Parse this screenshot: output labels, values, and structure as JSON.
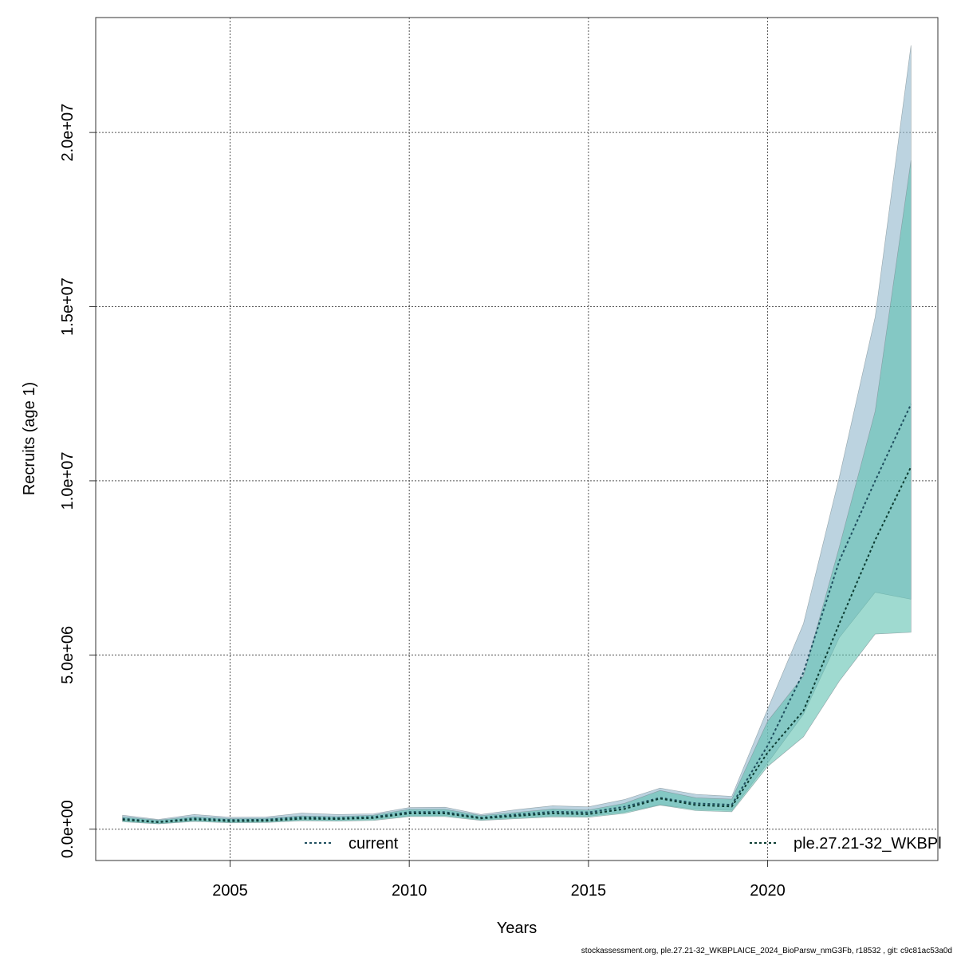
{
  "chart_data": {
    "type": "line",
    "title": "",
    "xlabel": "Years",
    "ylabel": "Recruits (age 1)",
    "xlim": [
      2001.25,
      2024.75
    ],
    "ylim": [
      -900000,
      23300000
    ],
    "x_ticks": [
      2005,
      2010,
      2015,
      2020
    ],
    "x_tick_labels": [
      "2005",
      "2010",
      "2015",
      "2020"
    ],
    "y_ticks": [
      0,
      5000000,
      10000000,
      15000000,
      20000000
    ],
    "y_tick_labels": [
      "0.0e+00",
      "5.0e+06",
      "1.0e+07",
      "1.5e+07",
      "2.0e+07"
    ],
    "grid": true,
    "legend_placement": "bottom",
    "x": [
      2002,
      2003,
      2004,
      2005,
      2006,
      2007,
      2008,
      2009,
      2010,
      2011,
      2012,
      2013,
      2014,
      2015,
      2016,
      2017,
      2018,
      2019,
      2020,
      2021,
      2022,
      2023,
      2024
    ],
    "series": [
      {
        "name": "current",
        "line_color": "#1f4f5f",
        "band_color": "#8fb6cc",
        "estimate": [
          300000,
          210000,
          310000,
          260000,
          270000,
          340000,
          320000,
          350000,
          490000,
          490000,
          330000,
          420000,
          500000,
          480000,
          640000,
          900000,
          740000,
          700000,
          2400000,
          4500000,
          7700000,
          10000000,
          12200000
        ],
        "lower": [
          230000,
          160000,
          240000,
          200000,
          210000,
          260000,
          250000,
          280000,
          380000,
          390000,
          270000,
          330000,
          380000,
          370000,
          490000,
          700000,
          570000,
          540000,
          1900000,
          3300000,
          5500000,
          6800000,
          6600000
        ],
        "upper": [
          400000,
          280000,
          420000,
          340000,
          350000,
          460000,
          420000,
          440000,
          620000,
          630000,
          420000,
          560000,
          670000,
          640000,
          850000,
          1180000,
          1000000,
          940000,
          3450000,
          5900000,
          10100000,
          14700000,
          22500000
        ]
      },
      {
        "name": "ple.27.21-32_WKBPl",
        "line_color": "#0d3d33",
        "band_color": "#5fc1b0",
        "estimate": [
          270000,
          200000,
          280000,
          230000,
          240000,
          300000,
          290000,
          320000,
          450000,
          450000,
          310000,
          380000,
          450000,
          430000,
          580000,
          880000,
          690000,
          650000,
          2200000,
          3400000,
          5900000,
          8300000,
          10400000
        ],
        "lower": [
          210000,
          150000,
          220000,
          180000,
          190000,
          240000,
          230000,
          250000,
          360000,
          360000,
          250000,
          300000,
          350000,
          340000,
          450000,
          690000,
          530000,
          500000,
          1800000,
          2650000,
          4250000,
          5600000,
          5650000
        ],
        "upper": [
          350000,
          260000,
          360000,
          300000,
          310000,
          380000,
          360000,
          400000,
          570000,
          570000,
          390000,
          480000,
          580000,
          550000,
          740000,
          1110000,
          900000,
          860000,
          3100000,
          4400000,
          8100000,
          12000000,
          19200000
        ]
      }
    ],
    "legend": [
      {
        "label": "current"
      },
      {
        "label": "ple.27.21-32_WKBPl"
      }
    ]
  },
  "footer_text": "stockassessment.org, ple.27.21-32_WKBPLAICE_2024_BioParsw_nmG3Fb, r18532 , git: c9c81ac53a0d"
}
